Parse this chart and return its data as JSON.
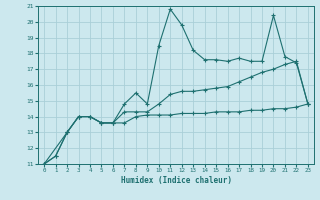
{
  "xlabel": "Humidex (Indice chaleur)",
  "xlim": [
    -0.5,
    23.5
  ],
  "ylim": [
    11,
    21
  ],
  "yticks": [
    11,
    12,
    13,
    14,
    15,
    16,
    17,
    18,
    19,
    20,
    21
  ],
  "xticks": [
    0,
    1,
    2,
    3,
    4,
    5,
    6,
    7,
    8,
    9,
    10,
    11,
    12,
    13,
    14,
    15,
    16,
    17,
    18,
    19,
    20,
    21,
    22,
    23
  ],
  "background_color": "#cce8ee",
  "grid_color": "#aacfd8",
  "line_color": "#1e7070",
  "line1_x": [
    0,
    1,
    2,
    3,
    4,
    5,
    6,
    7,
    8,
    9,
    10,
    11,
    12,
    13,
    14,
    15,
    16,
    17,
    18,
    19,
    20,
    21,
    22,
    23
  ],
  "line1_y": [
    11.0,
    11.5,
    13.0,
    14.0,
    14.0,
    13.6,
    13.6,
    14.8,
    15.5,
    14.8,
    18.5,
    20.8,
    19.8,
    18.2,
    17.6,
    17.6,
    17.5,
    17.7,
    17.5,
    17.5,
    20.4,
    17.8,
    17.4,
    14.8
  ],
  "line2_x": [
    0,
    1,
    2,
    3,
    4,
    5,
    6,
    7,
    8,
    9,
    10,
    11,
    12,
    13,
    14,
    15,
    16,
    17,
    18,
    19,
    20,
    21,
    22,
    23
  ],
  "line2_y": [
    11.0,
    11.5,
    13.0,
    14.0,
    14.0,
    13.6,
    13.6,
    14.3,
    14.3,
    14.3,
    14.8,
    15.4,
    15.6,
    15.6,
    15.7,
    15.8,
    15.9,
    16.2,
    16.5,
    16.8,
    17.0,
    17.3,
    17.5,
    14.8
  ],
  "line3_x": [
    0,
    2,
    3,
    4,
    5,
    6,
    7,
    8,
    9,
    10,
    11,
    12,
    13,
    14,
    15,
    16,
    17,
    18,
    19,
    20,
    21,
    22,
    23
  ],
  "line3_y": [
    11.0,
    13.0,
    14.0,
    14.0,
    13.6,
    13.6,
    13.6,
    14.0,
    14.1,
    14.1,
    14.1,
    14.2,
    14.2,
    14.2,
    14.3,
    14.3,
    14.3,
    14.4,
    14.4,
    14.5,
    14.5,
    14.6,
    14.8
  ]
}
